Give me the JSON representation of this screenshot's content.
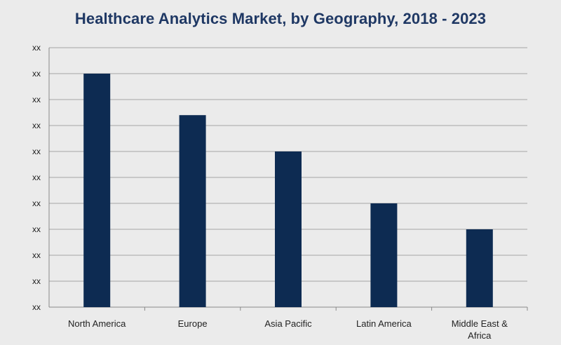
{
  "chart_data": {
    "type": "bar",
    "title": "Healthcare Analytics Market, by Geography, 2018 - 2023",
    "xlabel": "",
    "ylabel": "",
    "categories": [
      "North America",
      "Europe",
      "Asia Pacific",
      "Latin America",
      "Middle East & Africa"
    ],
    "values": [
      9,
      7.4,
      6,
      4,
      3
    ],
    "ylim": [
      0,
      10
    ],
    "y_tick_labels": [
      "xx",
      "xx",
      "xx",
      "xx",
      "xx",
      "xx",
      "xx",
      "xx",
      "xx",
      "xx",
      "xx"
    ],
    "grid": true,
    "legend": "none",
    "bar_color": "#0d2b52",
    "background_color": "#ebebeb",
    "gridline_color": "#a6a6a6"
  }
}
